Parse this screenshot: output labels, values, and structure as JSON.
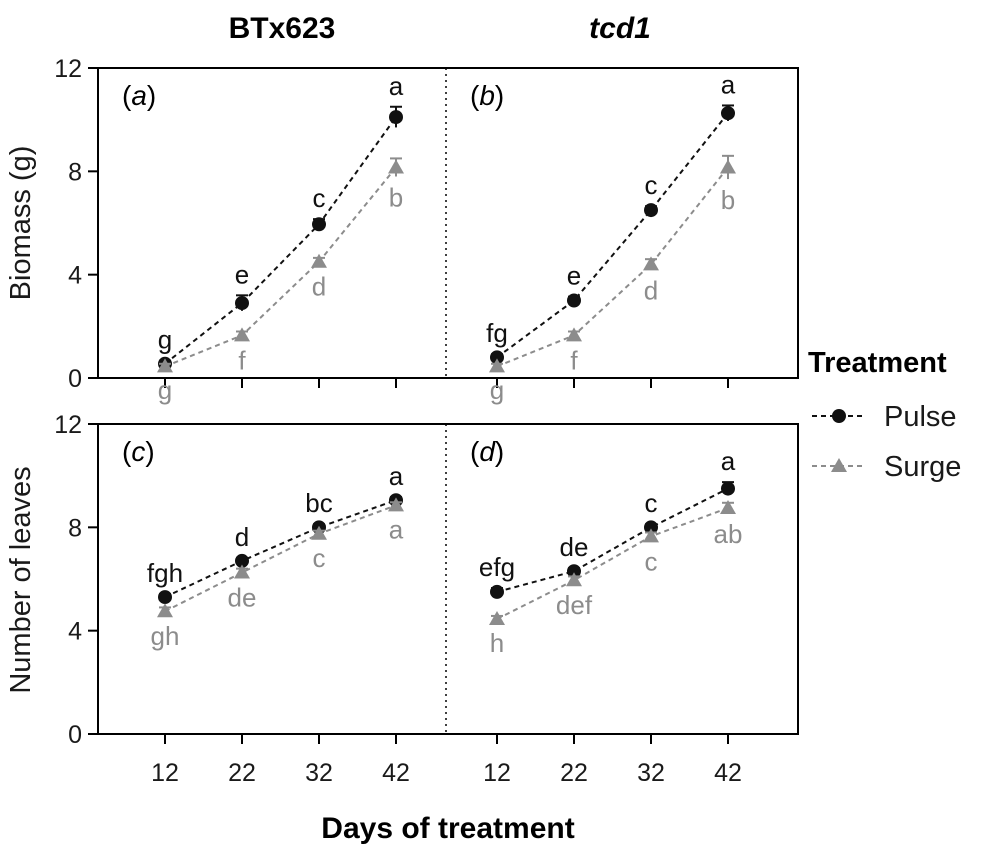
{
  "headers": {
    "left": "BTx623",
    "right": "tcd1",
    "x_axis": "Days of treatment"
  },
  "legend": {
    "title": "Treatment",
    "placement": "right",
    "entries": [
      {
        "name": "Pulse",
        "color": "#111111",
        "marker": "circle"
      },
      {
        "name": "Surge",
        "color": "#8c8c8c",
        "marker": "triangle"
      }
    ]
  },
  "chart_data": [
    {
      "type": "line",
      "panel": "(a)",
      "panel_letter": "a",
      "genotype": "BTx623",
      "ylabel": "Biomass (g)",
      "ylim": [
        0,
        12
      ],
      "yticks": [
        0,
        4,
        8,
        12
      ],
      "x": [
        12,
        22,
        32,
        42
      ],
      "series": [
        {
          "name": "Pulse",
          "values": [
            0.55,
            2.9,
            5.95,
            10.1
          ],
          "errors": [
            0.12,
            0.3,
            0.2,
            0.4
          ],
          "letters": [
            "g",
            "e",
            "c",
            "a"
          ]
        },
        {
          "name": "Surge",
          "values": [
            0.45,
            1.65,
            4.5,
            8.15
          ],
          "errors": [
            0.1,
            0.15,
            0.15,
            0.35
          ],
          "letters": [
            "g",
            "f",
            "d",
            "b"
          ]
        }
      ]
    },
    {
      "type": "line",
      "panel": "(b)",
      "panel_letter": "b",
      "genotype": "tcd1",
      "ylabel": "Biomass (g)",
      "ylim": [
        0,
        12
      ],
      "yticks": [
        0,
        4,
        8,
        12
      ],
      "x": [
        12,
        22,
        32,
        42
      ],
      "series": [
        {
          "name": "Pulse",
          "values": [
            0.8,
            3.0,
            6.5,
            10.25
          ],
          "errors": [
            0.12,
            0.15,
            0.15,
            0.3
          ],
          "letters": [
            "fg",
            "e",
            "c",
            "a"
          ]
        },
        {
          "name": "Surge",
          "values": [
            0.45,
            1.65,
            4.4,
            8.15
          ],
          "errors": [
            0.1,
            0.15,
            0.2,
            0.45
          ],
          "letters": [
            "g",
            "f",
            "d",
            "b"
          ]
        }
      ]
    },
    {
      "type": "line",
      "panel": "(c)",
      "panel_letter": "c",
      "genotype": "BTx623",
      "ylabel": "Number of leaves",
      "ylim": [
        0,
        12
      ],
      "yticks": [
        0,
        4,
        8,
        12
      ],
      "x": [
        12,
        22,
        32,
        42
      ],
      "series": [
        {
          "name": "Pulse",
          "values": [
            5.3,
            6.7,
            8.0,
            9.05
          ],
          "errors": [
            0.12,
            0.12,
            0.12,
            0.12
          ],
          "letters": [
            "fgh",
            "d",
            "bc",
            "a"
          ]
        },
        {
          "name": "Surge",
          "values": [
            4.75,
            6.25,
            7.75,
            8.85
          ],
          "errors": [
            0.15,
            0.15,
            0.12,
            0.12
          ],
          "letters": [
            "gh",
            "de",
            "c",
            "a"
          ]
        }
      ]
    },
    {
      "type": "line",
      "panel": "(d)",
      "panel_letter": "d",
      "genotype": "tcd1",
      "ylabel": "Number of leaves",
      "ylim": [
        0,
        12
      ],
      "yticks": [
        0,
        4,
        8,
        12
      ],
      "x": [
        12,
        22,
        32,
        42
      ],
      "series": [
        {
          "name": "Pulse",
          "values": [
            5.5,
            6.3,
            8.0,
            9.5
          ],
          "errors": [
            0.15,
            0.12,
            0.12,
            0.25
          ],
          "letters": [
            "efg",
            "de",
            "c",
            "a"
          ]
        },
        {
          "name": "Surge",
          "values": [
            4.45,
            5.95,
            7.65,
            8.75
          ],
          "errors": [
            0.12,
            0.15,
            0.15,
            0.2
          ],
          "letters": [
            "h",
            "def",
            "c",
            "ab"
          ]
        }
      ]
    }
  ]
}
